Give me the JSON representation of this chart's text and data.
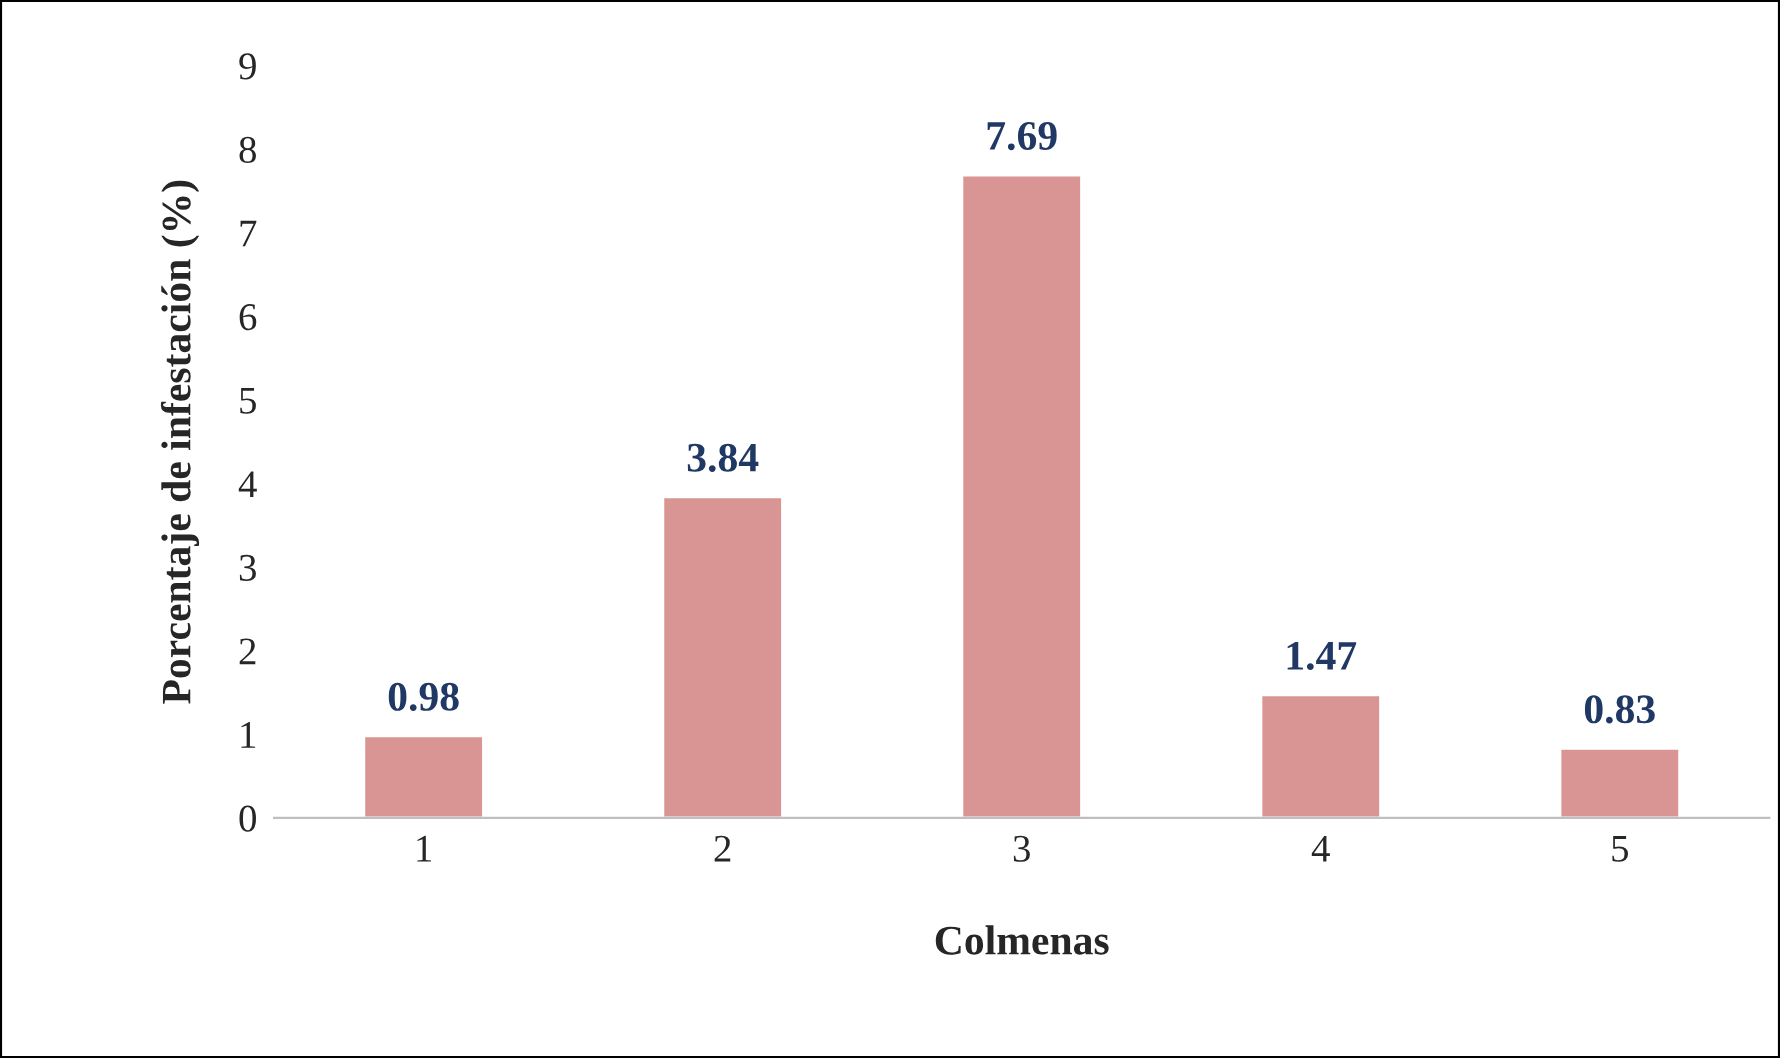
{
  "chart_data": {
    "type": "bar",
    "xlabel": "Colmenas",
    "ylabel": "Porcentaje de infestación (%)",
    "categories": [
      "1",
      "2",
      "3",
      "4",
      "5"
    ],
    "values": [
      0.98,
      3.84,
      7.69,
      1.47,
      0.83
    ],
    "color": "#d99594",
    "ylim": [
      0,
      9
    ],
    "yticks": [
      0,
      1,
      2,
      3,
      4,
      5,
      6,
      7,
      8,
      9
    ],
    "grid": false,
    "data_labels": true
  }
}
